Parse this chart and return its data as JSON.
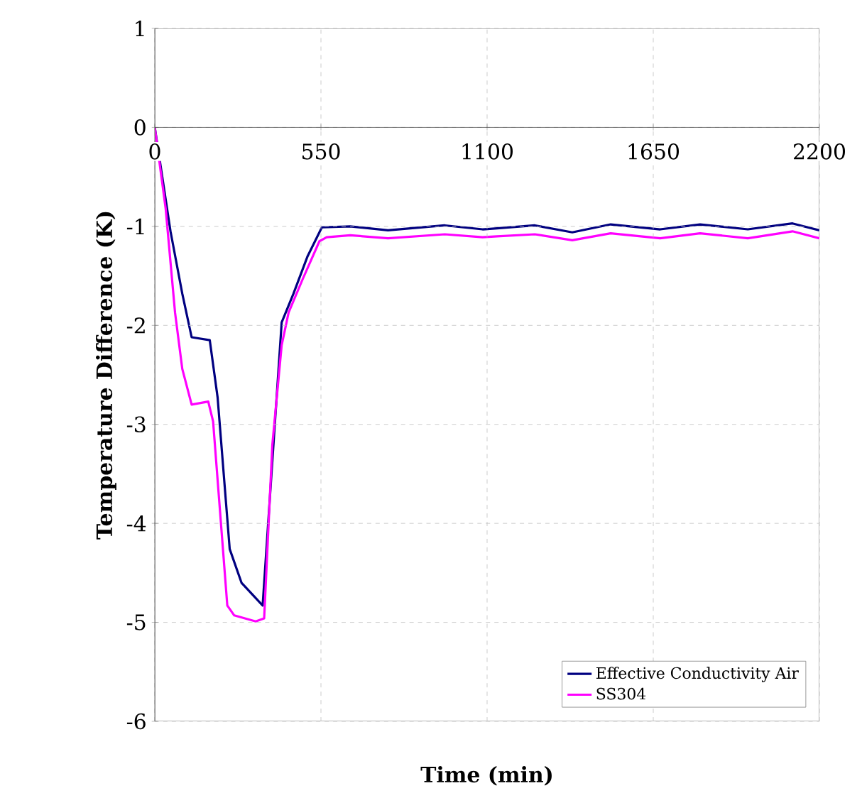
{
  "chart_data": {
    "type": "line",
    "xlabel": "Time (min)",
    "ylabel": "Temperature Difference (K)",
    "xlim": [
      0,
      2200
    ],
    "ylim": [
      -6,
      1
    ],
    "xticks": [
      0,
      550,
      1100,
      1650,
      2200
    ],
    "yticks": [
      -6,
      -5,
      -4,
      -3,
      -2,
      -1,
      0,
      1
    ],
    "grid": true,
    "legend": "bottom right",
    "marker": "none",
    "line_style": "solid",
    "series": [
      {
        "name": "Effective Conductivity Air",
        "color": "#000080",
        "x": [
          0,
          52,
          91,
          122,
          182,
          208,
          248,
          287,
          357,
          420,
          459,
          506,
          553,
          647,
          772,
          960,
          1085,
          1133,
          1258,
          1382,
          1509,
          1673,
          1805,
          1963,
          2111,
          2200
        ],
        "values": [
          0,
          -1.05,
          -1.68,
          -2.12,
          -2.15,
          -2.73,
          -4.26,
          -4.6,
          -4.83,
          -1.97,
          -1.68,
          -1.3,
          -1.01,
          -1.0,
          -1.04,
          -0.99,
          -1.03,
          -1.02,
          -0.99,
          -1.06,
          -0.98,
          -1.03,
          -0.98,
          -1.03,
          -0.97,
          -1.04
        ]
      },
      {
        "name": "SS304",
        "color": "#ff00ff",
        "x": [
          0,
          36,
          67,
          91,
          122,
          177,
          193,
          240,
          263,
          334,
          362,
          389,
          420,
          443,
          490,
          545,
          569,
          647,
          772,
          960,
          1085,
          1133,
          1258,
          1382,
          1509,
          1673,
          1805,
          1963,
          2111,
          2200
        ],
        "values": [
          0,
          -0.82,
          -1.87,
          -2.44,
          -2.8,
          -2.77,
          -2.97,
          -4.83,
          -4.93,
          -4.99,
          -4.96,
          -3.21,
          -2.2,
          -1.87,
          -1.53,
          -1.15,
          -1.11,
          -1.09,
          -1.12,
          -1.08,
          -1.11,
          -1.1,
          -1.08,
          -1.14,
          -1.07,
          -1.12,
          -1.07,
          -1.12,
          -1.05,
          -1.12
        ]
      }
    ]
  }
}
